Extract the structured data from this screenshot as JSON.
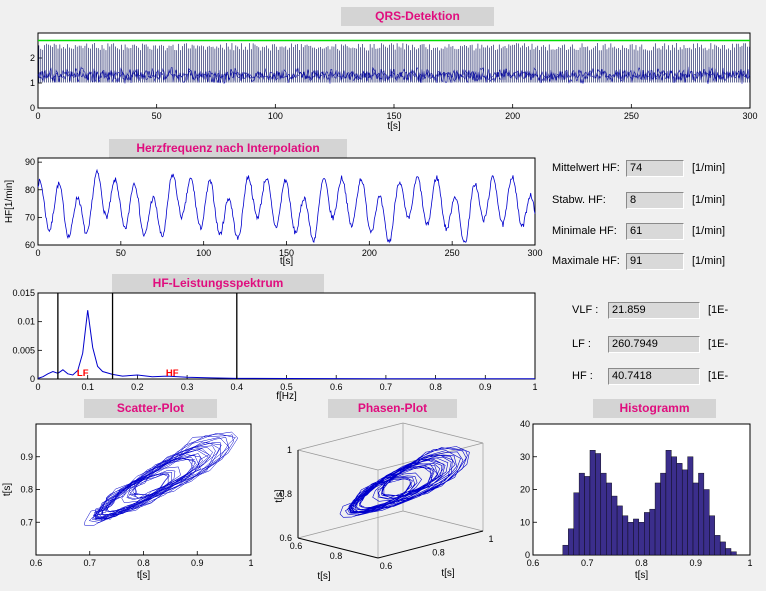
{
  "window": {
    "background": "#f0f0f0",
    "title_bar_bg": "#d4d4d4",
    "accent_text": "#e00d7e",
    "field_bg": "#d9d9d9"
  },
  "titles": {
    "qrs": "QRS-Detektion",
    "hr": "Herzfrequenz nach Interpolation",
    "spectrum": "HF-Leistungsspektrum",
    "scatter": "Scatter-Plot",
    "phase": "Phasen-Plot",
    "histogram": "Histogramm"
  },
  "stats_panel": {
    "rows": [
      {
        "label": "Mittelwert HF:",
        "value": "74",
        "unit": "[1/min]"
      },
      {
        "label": "Stabw. HF:",
        "value": "8",
        "unit": "[1/min]"
      },
      {
        "label": "Minimale HF:",
        "value": "61",
        "unit": "[1/min]"
      },
      {
        "label": "Maximale HF:",
        "value": "91",
        "unit": "[1/min]"
      }
    ]
  },
  "spectral_panel": {
    "rows": [
      {
        "label": "VLF :",
        "value": "21.859",
        "unit": "[1E-"
      },
      {
        "label": "LF :",
        "value": "260.7949",
        "unit": "[1E-"
      },
      {
        "label": "HF :",
        "value": "40.7418",
        "unit": "[1E-"
      }
    ]
  },
  "chart_data": [
    {
      "id": "qrs",
      "type": "line",
      "title": "QRS-Detektion",
      "xlabel": "t[s]",
      "xlim": [
        0,
        300
      ],
      "xticks": [
        0,
        50,
        100,
        150,
        200,
        250,
        300
      ],
      "ylim": [
        0,
        3
      ],
      "yticks": [
        0,
        1,
        2
      ],
      "signal": {
        "kind": "ecg-with-detected-beats",
        "baseline": 1.3,
        "noise_band": 0.55,
        "beat_interval_s": 0.81,
        "spike_top": 2.45,
        "threshold": 2.7,
        "threshold_color": "#00dd00",
        "trace_color": "#0000bb"
      }
    },
    {
      "id": "hr",
      "type": "line",
      "title": "Herzfrequenz nach Interpolation",
      "xlabel": "t[s]",
      "ylabel": "HF[1/min]",
      "xlim": [
        0,
        300
      ],
      "xticks": [
        0,
        50,
        100,
        150,
        200,
        250,
        300
      ],
      "ylim": [
        60,
        91.5
      ],
      "yticks": [
        60,
        70,
        80,
        90
      ],
      "series": {
        "mean": 74,
        "std": 8,
        "min": 61,
        "max": 91,
        "main_period_s": 11.4,
        "color": "#0000cc"
      }
    },
    {
      "id": "spectrum",
      "type": "line",
      "title": "HF-Leistungsspektrum",
      "xlabel": "f[Hz]",
      "xlim": [
        0,
        1
      ],
      "xticks": [
        0,
        0.1,
        0.2,
        0.3,
        0.4,
        0.5,
        0.6,
        0.7,
        0.8,
        0.9,
        1
      ],
      "ylim": [
        0,
        0.015
      ],
      "yticks": [
        0,
        0.005,
        0.01,
        0.015
      ],
      "points": {
        "x": [
          0,
          0.01,
          0.02,
          0.03,
          0.04,
          0.05,
          0.06,
          0.07,
          0.08,
          0.09,
          0.1,
          0.11,
          0.12,
          0.13,
          0.15,
          0.17,
          0.2,
          0.23,
          0.26,
          0.3,
          0.35,
          0.4,
          0.5,
          0.7,
          1.0
        ],
        "y": [
          0.0001,
          0.0004,
          0.0009,
          0.0013,
          0.001,
          0.0016,
          0.0009,
          0.0007,
          0.0015,
          0.0045,
          0.012,
          0.0055,
          0.0022,
          0.0013,
          0.0008,
          0.0005,
          0.0007,
          0.0004,
          0.0005,
          0.0003,
          0.0002,
          0.0001,
          8e-05,
          5e-05,
          3e-05
        ],
        "peak": {
          "x": 0.1,
          "y": 0.012
        }
      },
      "vlines": [
        0.04,
        0.15,
        0.4
      ],
      "annotations": [
        {
          "text": "LF",
          "x": 0.09,
          "color": "#ff0000"
        },
        {
          "text": "HF",
          "x": 0.27,
          "color": "#ff0000"
        }
      ],
      "color": "#0000cc"
    },
    {
      "id": "scatter",
      "type": "scatter",
      "title": "Scatter-Plot",
      "xlabel": "t[s]",
      "ylabel": "t[s]",
      "xlim": [
        0.6,
        1
      ],
      "ylim": [
        0.6,
        1
      ],
      "xticks": [
        0.6,
        0.7,
        0.8,
        0.9,
        1
      ],
      "yticks": [
        0.7,
        0.8,
        0.9
      ],
      "color": "#0000cc",
      "desc": "successive beat intervals rr(n) vs rr(n+1), points connected by lines"
    },
    {
      "id": "phase",
      "type": "line3d",
      "title": "Phasen-Plot",
      "axis_label": "t[s]",
      "lim": [
        0.6,
        1
      ],
      "x_ticks": [
        0.6,
        0.8
      ],
      "y_ticks": [
        0.6,
        0.8,
        1
      ],
      "z_ticks": [
        0.6,
        0.8,
        1
      ],
      "color": "#0000cc",
      "desc": "3D trajectory of (rr(n), rr(n+1), rr(n+2))"
    },
    {
      "id": "hist",
      "type": "bar",
      "title": "Histogramm",
      "xlabel": "t[s]",
      "xlim": [
        0.6,
        1
      ],
      "xticks": [
        0.6,
        0.7,
        0.8,
        0.9,
        1
      ],
      "ylim": [
        0,
        40
      ],
      "yticks": [
        0,
        10,
        20,
        30,
        40
      ],
      "bin_start": 0.655,
      "bin_width": 0.01,
      "counts": [
        3,
        8,
        19,
        25,
        24,
        32,
        31,
        25,
        22,
        18,
        15,
        12,
        10,
        11,
        10,
        13,
        14,
        22,
        25,
        32,
        30,
        28,
        26,
        30,
        22,
        25,
        20,
        12,
        6,
        4,
        2,
        1
      ],
      "bar_color": "#3b2e8c"
    }
  ]
}
